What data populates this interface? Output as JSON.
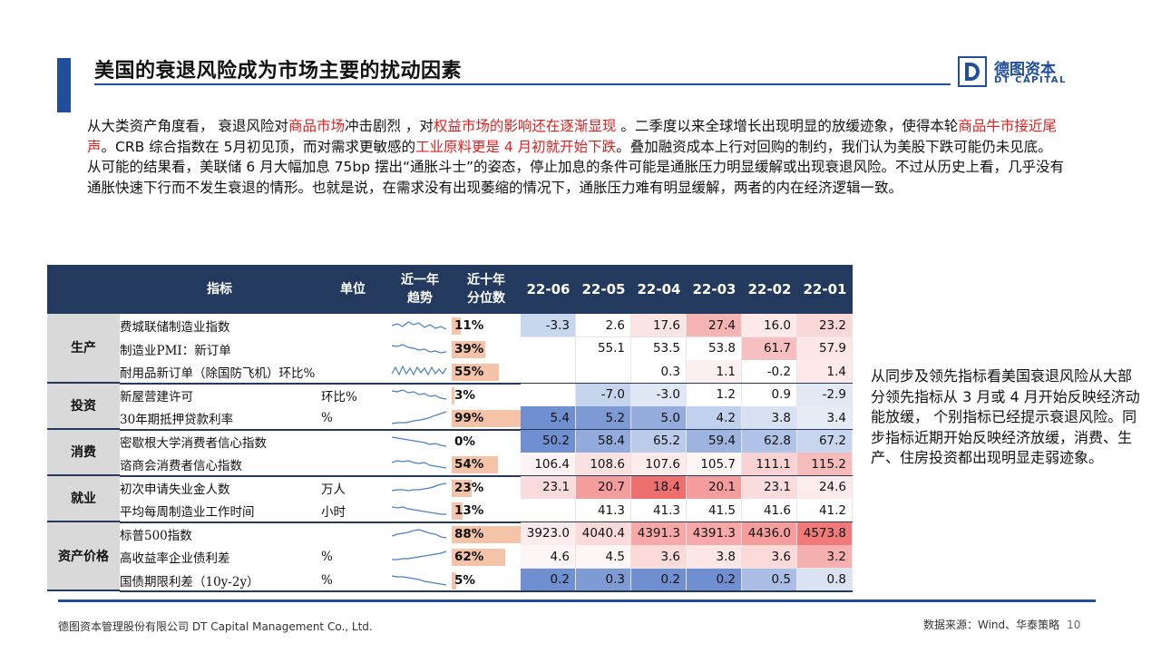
{
  "title": "美国的衰退风险成为市场主要的扰动因素",
  "logo": {
    "cn": "德图资本",
    "en": "DT CAPITAL"
  },
  "paragraphs": {
    "p1": [
      {
        "t": "从大类资产角度看， 衰退风险对",
        "hl": false
      },
      {
        "t": "商品市场",
        "hl": true
      },
      {
        "t": "冲击剧烈 ，对",
        "hl": false
      },
      {
        "t": "权益市场的影响还在逐渐显现",
        "hl": true
      },
      {
        "t": " 。二季度以来全球增长出现明显的放缓迹象，使得本轮",
        "hl": false
      },
      {
        "t": "商品牛市接近尾声",
        "hl": true
      },
      {
        "t": "。CRB 综合指数在 5月初见顶，而对需求更敏感的",
        "hl": false
      },
      {
        "t": "工业原料更是 4 月初就开始下跌",
        "hl": true
      },
      {
        "t": "。叠加融资成本上行对回购的制约，我们认为美股下跌可能仍未见底。",
        "hl": false
      }
    ],
    "p2": "从可能的结果看，美联储 6 月大幅加息 75bp 摆出“通胀斗士”的姿态，停止加息的条件可能是通胀压力明显缓解或出现衰退风险。不过从历史上看，几乎没有通胀快速下行而不发生衰退的情形。也就是说，在需求没有出现萎缩的情况下，通胀压力难有明显缓解，两者的内在经济逻辑一致。"
  },
  "table": {
    "headers": {
      "indicator": "指标",
      "unit": "单位",
      "trend": [
        "近一年",
        "趋势"
      ],
      "percentile": [
        "近十年",
        "分位数"
      ],
      "dates": [
        "22-06",
        "22-05",
        "22-04",
        "22-03",
        "22-02",
        "22-01"
      ]
    },
    "groups": [
      {
        "name": "生产",
        "rows": [
          {
            "name": "费城联储制造业指数",
            "unit": "",
            "pct": "11%",
            "pct_value": 11,
            "values": [
              "-3.3",
              "2.6",
              "17.6",
              "27.4",
              "16.0",
              "23.2"
            ],
            "colors": [
              "#c9d7ee",
              "#ffffff",
              "#fbe4e4",
              "#f6b3b3",
              "#fde9e9",
              "#fbd8d8"
            ]
          },
          {
            "name": "制造业PMI：新订单",
            "unit": "",
            "pct": "39%",
            "pct_value": 39,
            "values": [
              "",
              "55.1",
              "53.5",
              "53.8",
              "61.7",
              "57.9"
            ],
            "colors": [
              "#ffffff",
              "#ffffff",
              "#ffffff",
              "#ffffff",
              "#f6c0c0",
              "#fde6e6"
            ]
          },
          {
            "name": "耐用品新订单（除国防飞机）环比%",
            "unit": "",
            "pct": "55%",
            "pct_value": 55,
            "values": [
              "",
              "",
              "0.3",
              "1.1",
              "-0.2",
              "1.4"
            ],
            "colors": [
              "#ffffff",
              "#ffffff",
              "#ffffff",
              "#fdf0f0",
              "#ffffff",
              "#fde9e9"
            ]
          }
        ]
      },
      {
        "name": "投资",
        "rows": [
          {
            "name": "新屋营建许可",
            "unit": "环比%",
            "pct": "3%",
            "pct_value": 3,
            "values": [
              "",
              "-7.0",
              "-3.0",
              "1.2",
              "0.9",
              "-2.9"
            ],
            "colors": [
              "#ffffff",
              "#c6d4ee",
              "#e1e8f5",
              "#ffffff",
              "#ffffff",
              "#e2e9f5"
            ]
          },
          {
            "name": "30年期抵押贷款利率",
            "unit": "%",
            "pct": "99%",
            "pct_value": 99,
            "values": [
              "5.4",
              "5.2",
              "5.0",
              "4.2",
              "3.8",
              "3.4"
            ],
            "colors": [
              "#6f8fd0",
              "#7d9ad4",
              "#95acdc",
              "#c1d0ec",
              "#d8e1f2",
              "#e6ecf6"
            ]
          }
        ]
      },
      {
        "name": "消费",
        "rows": [
          {
            "name": "密歇根大学消费者信心指数",
            "unit": "",
            "pct": "0%",
            "pct_value": 0,
            "values": [
              "50.2",
              "58.4",
              "65.2",
              "59.4",
              "62.8",
              "67.2"
            ],
            "colors": [
              "#6f8fd0",
              "#93aadc",
              "#bccbea",
              "#9fb3df",
              "#b0c2e6",
              "#c8d5ee"
            ]
          },
          {
            "name": "谘商会消费者信心指数",
            "unit": "",
            "pct": "54%",
            "pct_value": 54,
            "values": [
              "106.4",
              "108.6",
              "107.6",
              "105.7",
              "111.1",
              "115.2"
            ],
            "colors": [
              "#fdf3f3",
              "#fbe2e2",
              "#fdeaea",
              "#fef5f5",
              "#f9d3d3",
              "#f6bcbc"
            ]
          }
        ]
      },
      {
        "name": "就业",
        "rows": [
          {
            "name": "初次申请失业金人数",
            "unit": "万人",
            "pct": "23%",
            "pct_value": 23,
            "values": [
              "23.1",
              "20.7",
              "18.4",
              "20.1",
              "23.1",
              "24.6"
            ],
            "colors": [
              "#fbdcdc",
              "#f59c9c",
              "#ef6f6f",
              "#f59c9c",
              "#fbdcdc",
              "#fdebeb"
            ]
          },
          {
            "name": "平均每周制造业工作时间",
            "unit": "小时",
            "pct": "13%",
            "pct_value": 13,
            "values": [
              "",
              "41.3",
              "41.3",
              "41.5",
              "41.6",
              "41.2"
            ],
            "colors": [
              "#ffffff",
              "#ffffff",
              "#ffffff",
              "#ffffff",
              "#ffffff",
              "#ffffff"
            ]
          }
        ]
      },
      {
        "name": "资产价格",
        "rows": [
          {
            "name": "标普500指数",
            "unit": "",
            "pct": "88%",
            "pct_value": 88,
            "values": [
              "3923.0",
              "4040.4",
              "4391.3",
              "4391.3",
              "4436.0",
              "4573.8"
            ],
            "colors": [
              "#fdeaea",
              "#fbdada",
              "#f7a9a9",
              "#f7a9a9",
              "#f59d9d",
              "#f07a7a"
            ]
          },
          {
            "name": "高收益率企业债利差",
            "unit": "%",
            "pct": "62%",
            "pct_value": 62,
            "values": [
              "4.6",
              "4.5",
              "3.6",
              "3.8",
              "3.6",
              "3.2"
            ],
            "colors": [
              "#fef6f6",
              "#fef6f6",
              "#fbdada",
              "#fce6e6",
              "#fbdada",
              "#f6b0b0"
            ]
          },
          {
            "name": "国债期限利差（10y-2y）",
            "unit": "%",
            "pct": "5%",
            "pct_value": 5,
            "values": [
              "0.2",
              "0.3",
              "0.2",
              "0.2",
              "0.5",
              "0.8"
            ],
            "colors": [
              "#6f8fd0",
              "#7e9bd4",
              "#6f8fd0",
              "#6f8fd0",
              "#aabde4",
              "#dbe3f3"
            ]
          }
        ]
      }
    ]
  },
  "side_note": "从同步及领先指标看美国衰退风险从大部分领先指标从 3 月或 4 月开始反映经济动能放缓， 个别指标已经提示衰退风险。同步指标近期开始反映经济放缓，消费、生产、住房投资都出现明显走弱迹象。",
  "footer": {
    "company": "德图资本管理股份有限公司  DT Capital Management  Co., Ltd.",
    "source": "数据来源：Wind、华泰策略",
    "page": "10"
  }
}
